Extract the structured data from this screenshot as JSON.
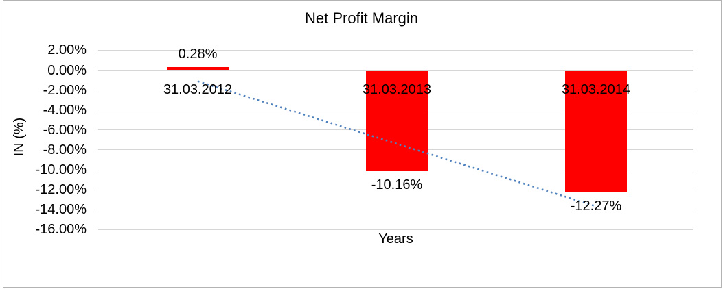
{
  "chart_data": {
    "type": "bar",
    "title": "Net Profit Margin",
    "xlabel": "Years",
    "ylabel": "IN (%)",
    "categories": [
      "31.03.2012",
      "31.03.2013",
      "31.03.2014"
    ],
    "values": [
      0.28,
      -10.16,
      -12.27
    ],
    "value_labels": [
      "0.28%",
      "-10.16%",
      "-12.27%"
    ],
    "ylim": [
      -16,
      2
    ],
    "grid": true,
    "legend": false,
    "bar_color": "#ff0000",
    "y_axis": {
      "ticks": [
        {
          "value": 2,
          "label": "2.00%"
        },
        {
          "value": 0,
          "label": "0.00%"
        },
        {
          "value": -2,
          "label": "-2.00%"
        },
        {
          "value": -4,
          "label": "-4.00%"
        },
        {
          "value": -6,
          "label": "-6.00%"
        },
        {
          "value": -8,
          "label": "-8.00%"
        },
        {
          "value": -10,
          "label": "-10.00%"
        },
        {
          "value": -12,
          "label": "-12.00%"
        },
        {
          "value": -14,
          "label": "-14.00%"
        },
        {
          "value": -16,
          "label": "-16.00%"
        }
      ]
    },
    "trendline": {
      "type": "linear",
      "style": "dotted",
      "color": "#4f81bd",
      "start_value": -1.11,
      "end_value": -13.66
    }
  }
}
